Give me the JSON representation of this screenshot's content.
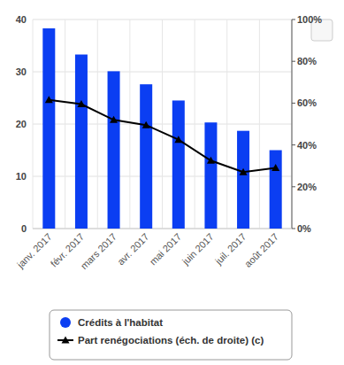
{
  "chart_data": {
    "type": "bar",
    "categories": [
      "janv. 2017",
      "févr. 2017",
      "mars 2017",
      "avr. 2017",
      "mai 2017",
      "juin 2017",
      "juil. 2017",
      "août 2017"
    ],
    "series": [
      {
        "name": "Crédits à l'habitat",
        "type": "bar",
        "color": "#0b3ef2",
        "values": [
          38.3,
          33.3,
          30.1,
          27.6,
          24.5,
          20.3,
          18.7,
          15.0
        ]
      },
      {
        "name": "Part renégociations (éch. de droite) (c)",
        "type": "line",
        "color": "#000000",
        "marker": "triangle",
        "axis": "y2",
        "values": [
          61.5,
          59.5,
          52,
          49.5,
          42.5,
          32.5,
          27,
          29
        ]
      }
    ],
    "ylim": [
      0,
      40
    ],
    "yticks": [
      0,
      10,
      20,
      30,
      40
    ],
    "y2lim": [
      0,
      100
    ],
    "y2ticks": [
      {
        "value": 0,
        "label": "0%"
      },
      {
        "value": 20,
        "label": "20%"
      },
      {
        "value": 40,
        "label": "40%"
      },
      {
        "value": 60,
        "label": "60%"
      },
      {
        "value": 80,
        "label": "80%"
      },
      {
        "value": 100,
        "label": "100%"
      }
    ],
    "grid": true,
    "legend": "bottom"
  }
}
